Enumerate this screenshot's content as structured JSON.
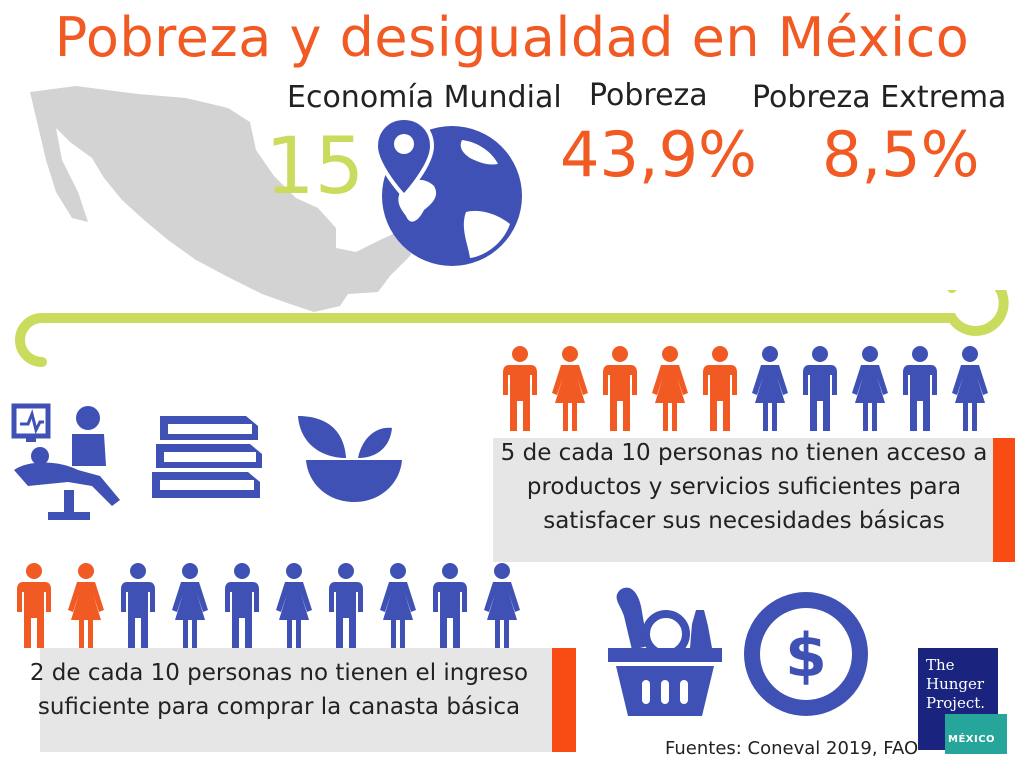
{
  "title": "Pobreza y desigualdad en México",
  "stats": {
    "economy": {
      "label": "Economía Mundial",
      "value": "15"
    },
    "poverty": {
      "label": "Pobreza",
      "value": "43,9%"
    },
    "extreme": {
      "label": "Pobreza Extrema",
      "value": "8,5%"
    }
  },
  "people_top": {
    "highlighted": 5,
    "total": 10,
    "text": "5 de  cada 10 personas no tienen acceso a productos y servicios suficientes para satisfacer sus necesidades básicas"
  },
  "people_bottom": {
    "highlighted": 2,
    "total": 10,
    "text": "2 de cada 10 personas no tienen el ingreso suficiente para comprar la canasta básica"
  },
  "sources": "Fuentes: Coneval 2019, FAO",
  "logo": {
    "line1": "The",
    "line2": "Hunger",
    "line3": "Project.",
    "tag": "MÉXICO"
  },
  "colors": {
    "orange": "#f15a22",
    "blue": "#3f51b5",
    "lime": "#cbdb5e",
    "gray": "#d3d3d3"
  },
  "icons": [
    "mexico-map",
    "globe-pin-icon",
    "dental-care-icon",
    "books-icon",
    "food-bowl-icon",
    "grocery-basket-icon",
    "dollar-coin-icon"
  ]
}
